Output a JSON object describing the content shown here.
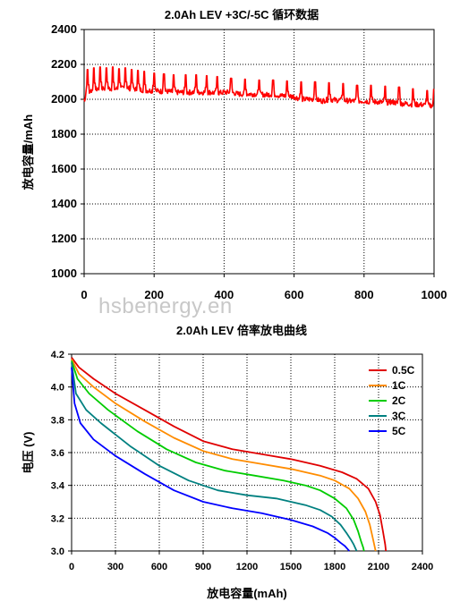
{
  "watermark": "hsbenergy.en",
  "chart_data": [
    {
      "type": "line",
      "title": "2.0Ah LEV +3C/-5C 循环数据",
      "xlabel": "",
      "ylabel": "放电容量/mAh",
      "xlim": [
        0,
        1000
      ],
      "ylim": [
        1000,
        2400
      ],
      "xticks": [
        "0",
        "200",
        "400",
        "600",
        "800",
        "1000"
      ],
      "yticks": [
        "1000",
        "1200",
        "1400",
        "1600",
        "1800",
        "2000",
        "2200",
        "2400"
      ],
      "grid": true,
      "grid_style": "dotted",
      "series": [
        {
          "color": "#ff0000",
          "x": [
            0,
            20,
            40,
            60,
            80,
            100,
            120,
            140,
            160,
            180,
            200,
            220,
            240,
            260,
            280,
            300,
            320,
            340,
            360,
            380,
            400,
            420,
            440,
            460,
            480,
            500,
            520,
            540,
            560,
            580,
            600,
            620,
            640,
            660,
            680,
            700,
            720,
            740,
            760,
            780,
            800,
            820,
            840,
            860,
            880,
            900,
            920,
            940,
            960,
            980,
            1000
          ],
          "y": [
            2040,
            2050,
            2060,
            2065,
            2060,
            2060,
            2065,
            2060,
            2055,
            2050,
            2050,
            2045,
            2045,
            2040,
            2040,
            2040,
            2040,
            2040,
            2040,
            2035,
            2040,
            2040,
            2030,
            2030,
            2030,
            2030,
            2025,
            2030,
            2020,
            2020,
            2015,
            2000,
            2000,
            2000,
            1990,
            2000,
            1995,
            1995,
            1990,
            1990,
            1990,
            1985,
            1985,
            1980,
            1985,
            1975,
            1975,
            1970,
            1970,
            1965,
            1965
          ]
        }
      ],
      "spikes": {
        "x": [
          10,
          28,
          46,
          64,
          82,
          100,
          118,
          136,
          154,
          172,
          200,
          228,
          256,
          290,
          320,
          350,
          380,
          420,
          460,
          500,
          540,
          580,
          620,
          660,
          700,
          740,
          780,
          820,
          860,
          900,
          940,
          980,
          1000
        ],
        "y": [
          2170,
          2180,
          2185,
          2180,
          2185,
          2175,
          2180,
          2170,
          2165,
          2160,
          2150,
          2145,
          2140,
          2140,
          2140,
          2135,
          2130,
          2120,
          2115,
          2110,
          2110,
          2105,
          2100,
          2100,
          2095,
          2090,
          2080,
          2080,
          2075,
          2070,
          2060,
          2050,
          2060
        ]
      }
    },
    {
      "type": "line",
      "title": "2.0Ah LEV 倍率放电曲线",
      "xlabel": "放电容量(mAh)",
      "ylabel": "电压 (V)",
      "xlim": [
        0,
        2400
      ],
      "ylim": [
        3.0,
        4.2
      ],
      "xticks": [
        "0",
        "300",
        "600",
        "900",
        "1200",
        "1500",
        "1800",
        "2100",
        "2400"
      ],
      "yticks": [
        "3.0",
        "3.2",
        "3.4",
        "3.6",
        "3.8",
        "4.0",
        "4.2"
      ],
      "grid": true,
      "grid_style": "dotted",
      "legend": "top-right",
      "series": [
        {
          "name": "0.5C",
          "color": "#e00000",
          "x": [
            0,
            50,
            150,
            300,
            500,
            700,
            900,
            1100,
            1300,
            1500,
            1700,
            1850,
            1950,
            2030,
            2080,
            2110,
            2130,
            2145,
            2150
          ],
          "y": [
            4.18,
            4.12,
            4.05,
            3.96,
            3.86,
            3.76,
            3.67,
            3.62,
            3.59,
            3.56,
            3.52,
            3.48,
            3.44,
            3.38,
            3.3,
            3.22,
            3.12,
            3.04,
            3.0
          ]
        },
        {
          "name": "1C",
          "color": "#ff8c00",
          "x": [
            0,
            50,
            150,
            300,
            500,
            700,
            900,
            1100,
            1300,
            1500,
            1700,
            1800,
            1900,
            1960,
            2010,
            2040,
            2060,
            2075,
            2080
          ],
          "y": [
            4.17,
            4.08,
            4.0,
            3.9,
            3.79,
            3.69,
            3.61,
            3.56,
            3.53,
            3.5,
            3.46,
            3.43,
            3.38,
            3.32,
            3.24,
            3.16,
            3.08,
            3.02,
            3.0
          ]
        },
        {
          "name": "2C",
          "color": "#00cc00",
          "x": [
            0,
            40,
            120,
            250,
            450,
            650,
            850,
            1050,
            1250,
            1450,
            1600,
            1700,
            1800,
            1880,
            1930,
            1960,
            1980,
            1995,
            2000
          ],
          "y": [
            4.16,
            4.05,
            3.96,
            3.86,
            3.73,
            3.62,
            3.54,
            3.49,
            3.46,
            3.43,
            3.4,
            3.37,
            3.32,
            3.26,
            3.19,
            3.12,
            3.06,
            3.02,
            3.0
          ]
        },
        {
          "name": "3C",
          "color": "#008080",
          "x": [
            0,
            30,
            100,
            200,
            400,
            600,
            800,
            1000,
            1200,
            1400,
            1600,
            1700,
            1780,
            1840,
            1880,
            1910,
            1930,
            1945,
            1950
          ],
          "y": [
            4.15,
            3.96,
            3.86,
            3.78,
            3.64,
            3.52,
            3.43,
            3.37,
            3.34,
            3.32,
            3.28,
            3.25,
            3.21,
            3.16,
            3.11,
            3.07,
            3.04,
            3.01,
            3.0
          ]
        },
        {
          "name": "5C",
          "color": "#0000ff",
          "x": [
            0,
            20,
            60,
            150,
            300,
            500,
            700,
            900,
            1100,
            1300,
            1500,
            1650,
            1750,
            1800,
            1840,
            1870,
            1890,
            1900
          ],
          "y": [
            4.12,
            3.9,
            3.78,
            3.68,
            3.58,
            3.47,
            3.37,
            3.3,
            3.26,
            3.23,
            3.19,
            3.15,
            3.11,
            3.08,
            3.05,
            3.03,
            3.01,
            3.0
          ]
        }
      ]
    }
  ]
}
